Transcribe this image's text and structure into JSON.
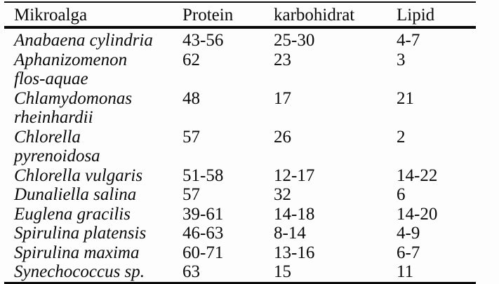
{
  "page": {
    "background": "#fdfdfd",
    "text_color": "#0a0a0a",
    "rule_color": "#0a0a0a"
  },
  "table": {
    "columns": {
      "name": "Mikroalga",
      "protein": "Protein",
      "karbohidrat": "karbohidrat",
      "lipid": "Lipid"
    },
    "rows": [
      {
        "name_lines": [
          "Anabaena cylindria"
        ],
        "protein": "43-56",
        "karbohidrat": "25-30",
        "lipid": "4-7"
      },
      {
        "name_lines": [
          "Aphanizomenon",
          "flos-aquae"
        ],
        "protein": "62",
        "karbohidrat": "23",
        "lipid": "3"
      },
      {
        "name_lines": [
          "Chlamydomonas",
          "rheinhardii"
        ],
        "protein": "48",
        "karbohidrat": "17",
        "lipid": "21"
      },
      {
        "name_lines": [
          "Chlorella",
          "pyrenoidosa"
        ],
        "protein": "57",
        "karbohidrat": "26",
        "lipid": "2"
      },
      {
        "name_lines": [
          "Chlorella vulgaris"
        ],
        "protein": "51-58",
        "karbohidrat": "12-17",
        "lipid": "14-22"
      },
      {
        "name_lines": [
          "Dunaliella salina"
        ],
        "protein": "57",
        "karbohidrat": "32",
        "lipid": "6"
      },
      {
        "name_lines": [
          "Euglena gracilis"
        ],
        "protein": "39-61",
        "karbohidrat": "14-18",
        "lipid": "14-20"
      },
      {
        "name_lines": [
          "Spirulina platensis"
        ],
        "protein": "46-63",
        "karbohidrat": "8-14",
        "lipid": "4-9"
      },
      {
        "name_lines": [
          "Spirulina maxima"
        ],
        "protein": "60-71",
        "karbohidrat": "13-16",
        "lipid": "6-7"
      },
      {
        "name_lines": [
          "Synechococcus sp."
        ],
        "protein": "63",
        "karbohidrat": "15",
        "lipid": "11"
      }
    ]
  }
}
